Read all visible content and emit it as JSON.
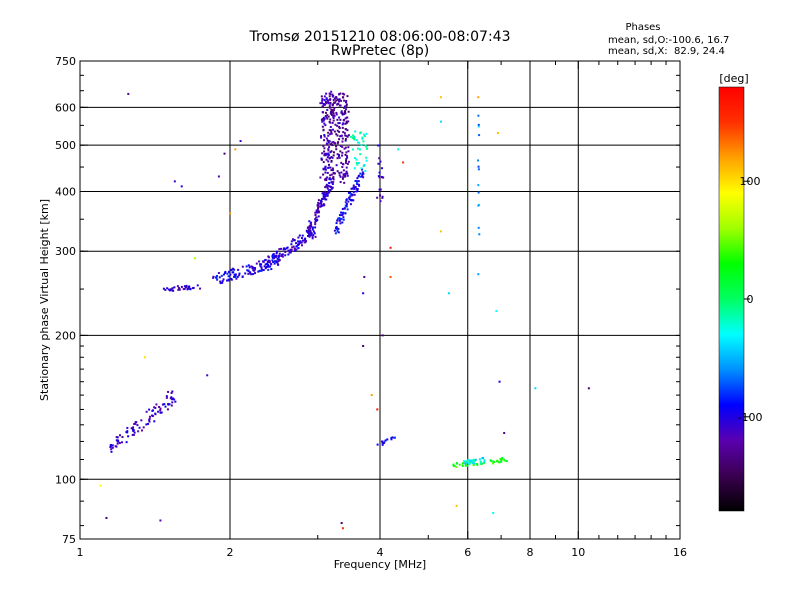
{
  "chart_data": {
    "type": "scatter",
    "title": "Tromsø 20151210 08:06:00-08:07:43",
    "subtitle": "RwPretec (8p)",
    "xlabel": "Frequency [MHz]",
    "ylabel": "Stationary phase Virtual Height [km]",
    "x_scale": "log",
    "y_scale": "log",
    "xlim": [
      1,
      16
    ],
    "ylim": [
      75,
      750
    ],
    "x_ticks": [
      "1",
      "2",
      "4",
      "6",
      "8",
      "10",
      "16"
    ],
    "y_ticks": [
      "75",
      "100",
      "200",
      "300",
      "400",
      "500",
      "600",
      "750"
    ],
    "x_gridlines": [
      2,
      4,
      6,
      8,
      10
    ],
    "y_gridlines": [
      100,
      200,
      300,
      400,
      500,
      600
    ],
    "grid": true,
    "stats": {
      "heading": "Phases",
      "line_o": "mean, sd,O:-100.6, 16.7",
      "line_x": "mean, sd,X:  82.9, 24.4"
    },
    "colorbar": {
      "label": "[deg]",
      "min": -180,
      "max": 180,
      "ticks": [
        "100",
        "0",
        "-100"
      ],
      "tick_values": [
        100,
        0,
        -100
      ],
      "colormap": [
        "#000000",
        "#3a0050",
        "#5a00b0",
        "#0000ff",
        "#0090ff",
        "#00ffff",
        "#00ff60",
        "#00ff00",
        "#a0ff00",
        "#ffff00",
        "#ffa000",
        "#ff3000",
        "#ff0000"
      ]
    },
    "traces": [
      {
        "name": "",
        "x0": 1.45,
        "x1": 1.75,
        "y0": 250,
        "y1": 252,
        "n": 35,
        "phase": -110,
        "spread": 1.5
      },
      {
        "name": "",
        "x0": 1.85,
        "x1": 2.5,
        "y0": 262,
        "y1": 285,
        "n": 110,
        "phase": -100,
        "spread": 4
      },
      {
        "name": "",
        "x0": 2.4,
        "x1": 2.95,
        "y0": 285,
        "y1": 330,
        "n": 110,
        "phase": -105,
        "spread": 4
      },
      {
        "name": "",
        "x0": 2.85,
        "x1": 3.2,
        "y0": 320,
        "y1": 420,
        "n": 110,
        "phase": -110,
        "spread": 4
      },
      {
        "name": "",
        "x0": 3.05,
        "x1": 3.22,
        "y0": 420,
        "y1": 640,
        "n": 150,
        "phase": -120,
        "spread": 3
      },
      {
        "name": "",
        "x0": 3.2,
        "x1": 3.45,
        "y0": 420,
        "y1": 640,
        "n": 170,
        "phase": -125,
        "spread": 3
      },
      {
        "name": "",
        "x0": 3.25,
        "x1": 3.7,
        "y0": 330,
        "y1": 440,
        "n": 90,
        "phase": -95,
        "spread": 4
      },
      {
        "name": "",
        "x0": 3.5,
        "x1": 3.75,
        "y0": 440,
        "y1": 540,
        "n": 40,
        "phase": -20,
        "spread": 3
      },
      {
        "name": "",
        "x0": 3.95,
        "x1": 4.05,
        "y0": 380,
        "y1": 500,
        "n": 18,
        "phase": -110,
        "spread": 2
      },
      {
        "name": "",
        "x0": 1.15,
        "x1": 1.55,
        "y0": 115,
        "y1": 150,
        "n": 90,
        "phase": -110,
        "spread": 5
      },
      {
        "name": "",
        "x0": 5.6,
        "x1": 7.2,
        "y0": 107,
        "y1": 110,
        "n": 45,
        "phase": 30,
        "spread": 1.5
      },
      {
        "name": "",
        "x0": 5.8,
        "x1": 6.6,
        "y0": 108,
        "y1": 110,
        "n": 25,
        "phase": -30,
        "spread": 1.5
      },
      {
        "name": "",
        "x0": 6.3,
        "x1": 6.32,
        "y0": 260,
        "y1": 600,
        "n": 14,
        "phase": -60,
        "spread": 1
      },
      {
        "name": "",
        "x0": 3.95,
        "x1": 4.3,
        "y0": 118,
        "y1": 122,
        "n": 14,
        "phase": -90,
        "spread": 1.5
      }
    ],
    "isolated_points": [
      {
        "x": 1.25,
        "y": 640,
        "phase": -130
      },
      {
        "x": 1.55,
        "y": 420,
        "phase": -110
      },
      {
        "x": 1.6,
        "y": 410,
        "phase": -100
      },
      {
        "x": 1.9,
        "y": 430,
        "phase": -120
      },
      {
        "x": 1.95,
        "y": 480,
        "phase": -140
      },
      {
        "x": 2.1,
        "y": 510,
        "phase": -110
      },
      {
        "x": 2.05,
        "y": 490,
        "phase": 120
      },
      {
        "x": 2.0,
        "y": 360,
        "phase": 120
      },
      {
        "x": 1.7,
        "y": 290,
        "phase": 60
      },
      {
        "x": 1.8,
        "y": 165,
        "phase": -110
      },
      {
        "x": 1.35,
        "y": 180,
        "phase": 100
      },
      {
        "x": 1.1,
        "y": 97,
        "phase": 90
      },
      {
        "x": 1.13,
        "y": 83,
        "phase": -140
      },
      {
        "x": 1.45,
        "y": 82,
        "phase": -120
      },
      {
        "x": 3.35,
        "y": 81,
        "phase": -140
      },
      {
        "x": 3.37,
        "y": 79,
        "phase": 150
      },
      {
        "x": 3.7,
        "y": 190,
        "phase": -140
      },
      {
        "x": 3.7,
        "y": 245,
        "phase": -100
      },
      {
        "x": 3.72,
        "y": 265,
        "phase": -130
      },
      {
        "x": 4.05,
        "y": 200,
        "phase": -140
      },
      {
        "x": 4.2,
        "y": 305,
        "phase": 170
      },
      {
        "x": 4.2,
        "y": 265,
        "phase": 140
      },
      {
        "x": 3.85,
        "y": 150,
        "phase": 120
      },
      {
        "x": 3.95,
        "y": 140,
        "phase": 170
      },
      {
        "x": 4.35,
        "y": 490,
        "phase": -20
      },
      {
        "x": 4.45,
        "y": 460,
        "phase": 150
      },
      {
        "x": 5.3,
        "y": 630,
        "phase": 110
      },
      {
        "x": 5.3,
        "y": 560,
        "phase": -40
      },
      {
        "x": 5.3,
        "y": 330,
        "phase": 110
      },
      {
        "x": 5.5,
        "y": 245,
        "phase": -40
      },
      {
        "x": 5.7,
        "y": 88,
        "phase": 110
      },
      {
        "x": 6.3,
        "y": 630,
        "phase": 120
      },
      {
        "x": 6.9,
        "y": 530,
        "phase": 110
      },
      {
        "x": 6.85,
        "y": 225,
        "phase": -30
      },
      {
        "x": 6.95,
        "y": 160,
        "phase": -100
      },
      {
        "x": 7.1,
        "y": 125,
        "phase": -130
      },
      {
        "x": 6.75,
        "y": 85,
        "phase": -30
      },
      {
        "x": 8.2,
        "y": 155,
        "phase": -40
      },
      {
        "x": 10.5,
        "y": 155,
        "phase": -140
      }
    ]
  }
}
